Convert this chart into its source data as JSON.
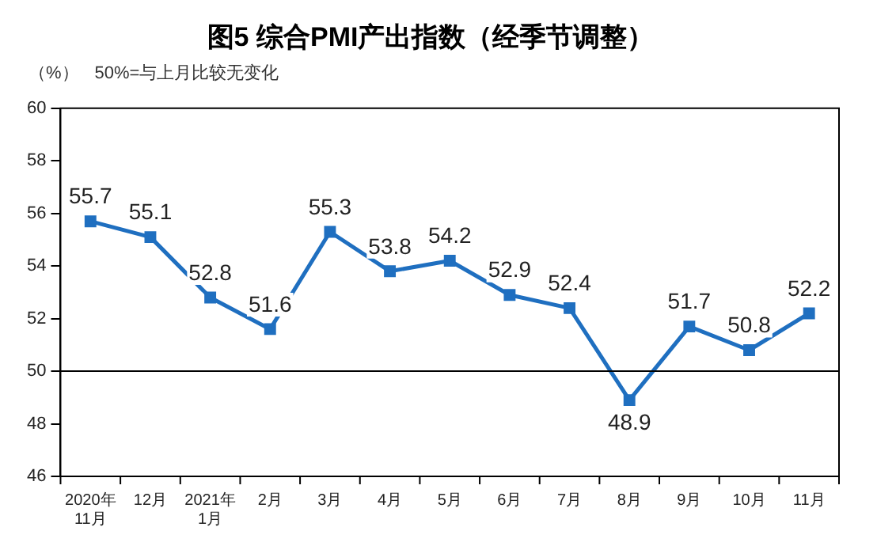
{
  "chart_data": {
    "type": "line",
    "title": "图5 综合PMI产出指数（经季节调整）",
    "ylabel": "（%）",
    "annotations": [
      "50%=与上月比较无变化"
    ],
    "categories": [
      "2020年\n11月",
      "12月",
      "2021年\n1月",
      "2月",
      "3月",
      "4月",
      "5月",
      "6月",
      "7月",
      "8月",
      "9月",
      "10月",
      "11月"
    ],
    "series": [
      {
        "color": "#1f6fc0",
        "values": [
          55.7,
          55.1,
          52.8,
          51.6,
          55.3,
          53.8,
          54.2,
          52.9,
          52.4,
          48.9,
          51.7,
          50.8,
          52.2
        ]
      }
    ],
    "ylim": [
      46,
      60
    ],
    "yticks": [
      46,
      48,
      50,
      52,
      54,
      56,
      58,
      60
    ],
    "ref_lines": [
      {
        "axis": "y",
        "value": 50,
        "color": "#000000"
      }
    ],
    "data_labels": true,
    "marker": "square",
    "line_style": "solid",
    "grid": false,
    "legend": false
  }
}
